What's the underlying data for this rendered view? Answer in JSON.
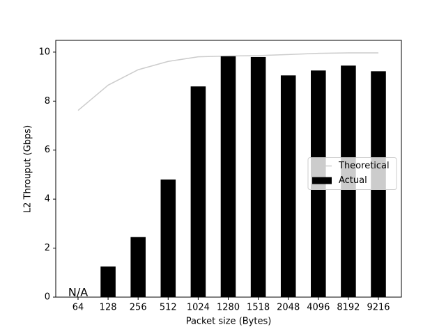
{
  "chart_data": {
    "type": "bar",
    "xlabel": "Packet size (Bytes)",
    "ylabel": "L2 Throuput (Gbps)",
    "categories": [
      "64",
      "128",
      "256",
      "512",
      "1024",
      "1280",
      "1518",
      "2048",
      "4096",
      "8192",
      "9216"
    ],
    "series": [
      {
        "name": "Theoretical",
        "type": "line",
        "color": "#cccccc",
        "values": [
          7.62,
          8.65,
          9.28,
          9.62,
          9.81,
          9.84,
          9.86,
          9.9,
          9.95,
          9.97,
          9.97
        ]
      },
      {
        "name": "Actual",
        "type": "bar",
        "color": "#000000",
        "values": [
          null,
          1.25,
          2.45,
          4.8,
          8.6,
          9.83,
          9.8,
          9.05,
          9.25,
          9.45,
          9.22
        ]
      }
    ],
    "annotation": "N/A",
    "ylim": [
      0,
      10.48
    ],
    "yticks": [
      0,
      2,
      4,
      6,
      8,
      10
    ],
    "grid": false,
    "legend": "center right"
  }
}
